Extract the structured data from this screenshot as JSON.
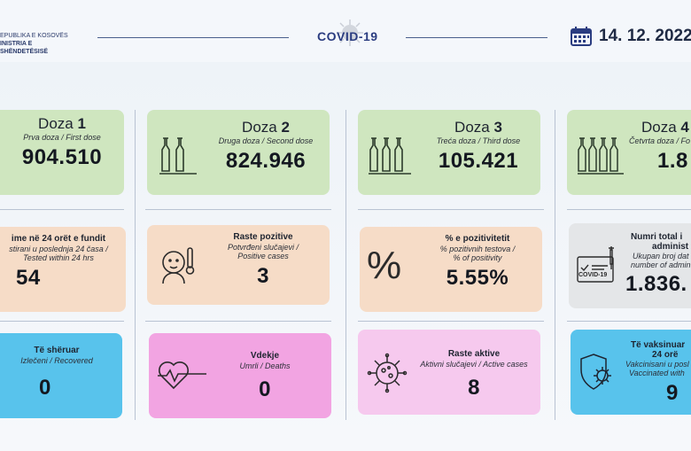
{
  "header": {
    "logo_line1": "EPUBLIKA E KOSOVËS",
    "logo_line2": "INISTRIA E SHËNDETËSISË",
    "title": "COVID-19",
    "date": "14. 12. 2022"
  },
  "doses": [
    {
      "title_prefix": "Doza",
      "title_num": "1",
      "sub": "Prva doza / First dose",
      "value": "904.510"
    },
    {
      "title_prefix": "Doza",
      "title_num": "2",
      "sub": "Druga doza / Second dose",
      "value": "824.946"
    },
    {
      "title_prefix": "Doza",
      "title_num": "3",
      "sub": "Treća doza / Third dose",
      "value": "105.421"
    },
    {
      "title_prefix": "Doza",
      "title_num": "4",
      "sub": "Četvrta doza / Fo",
      "value": "1.8"
    }
  ],
  "row2": [
    {
      "title": "ime në 24 orët e fundit",
      "sub1": "stirani u poslednja 24 časa /",
      "sub2": "Tested within 24 hrs",
      "value": "54"
    },
    {
      "title": "Raste pozitive",
      "sub1": "Potvrđeni slučajevi /",
      "sub2": "Positive cases",
      "value": "3"
    },
    {
      "title": "% e pozitivitetit",
      "sub1": "% pozitivnih testova /",
      "sub2": "% of positivity",
      "value": "5.55%"
    },
    {
      "title1": "Numri total i",
      "title2": "administ",
      "sub1": "Ukupan broj dat",
      "sub2": "number of admin",
      "value": "1.836.",
      "covid_label": "COVID-19"
    }
  ],
  "row3": [
    {
      "title": "Të shëruar",
      "sub": "Izlečeni / Recovered",
      "value": "0"
    },
    {
      "title": "Vdekje",
      "sub": "Umrli / Deaths",
      "value": "0"
    },
    {
      "title": "Raste aktive",
      "sub": "Aktivni slučajevi / Active cases",
      "value": "8"
    },
    {
      "title1": "Të vaksinuar",
      "title2": "24 orë",
      "sub1": "Vakcinisani u posl",
      "sub2": "Vaccinated with",
      "value": "9"
    }
  ]
}
